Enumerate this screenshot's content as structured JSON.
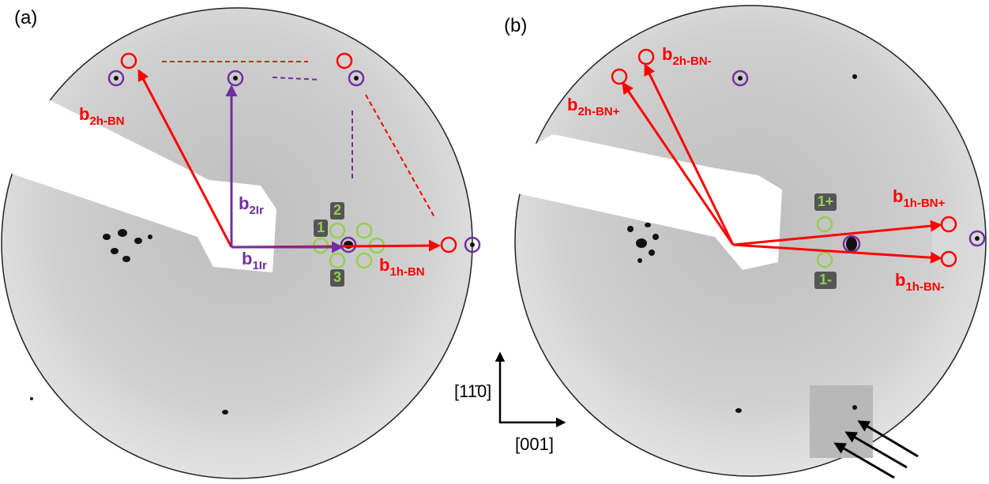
{
  "panels": [
    {
      "label": "(a)",
      "vectors": [
        {
          "main": "b",
          "sub": "2h-BN"
        },
        {
          "main": "b",
          "sub": "2Ir"
        },
        {
          "main": "b",
          "sub": "1Ir"
        },
        {
          "main": "b",
          "sub": "1h-BN"
        }
      ],
      "spot_labels": [
        "2",
        "1",
        "3"
      ]
    },
    {
      "label": "(b)",
      "vectors": [
        {
          "main": "b",
          "sub": "2h-BN-"
        },
        {
          "main": "b",
          "sub": "2h-BN+"
        },
        {
          "main": "b",
          "sub": "1h-BN+"
        },
        {
          "main": "b",
          "sub": "1h-BN-"
        }
      ],
      "spot_labels": [
        "1+",
        "1-"
      ]
    }
  ],
  "axes": {
    "vertical": "[11̄0]",
    "horizontal": "[001]"
  }
}
